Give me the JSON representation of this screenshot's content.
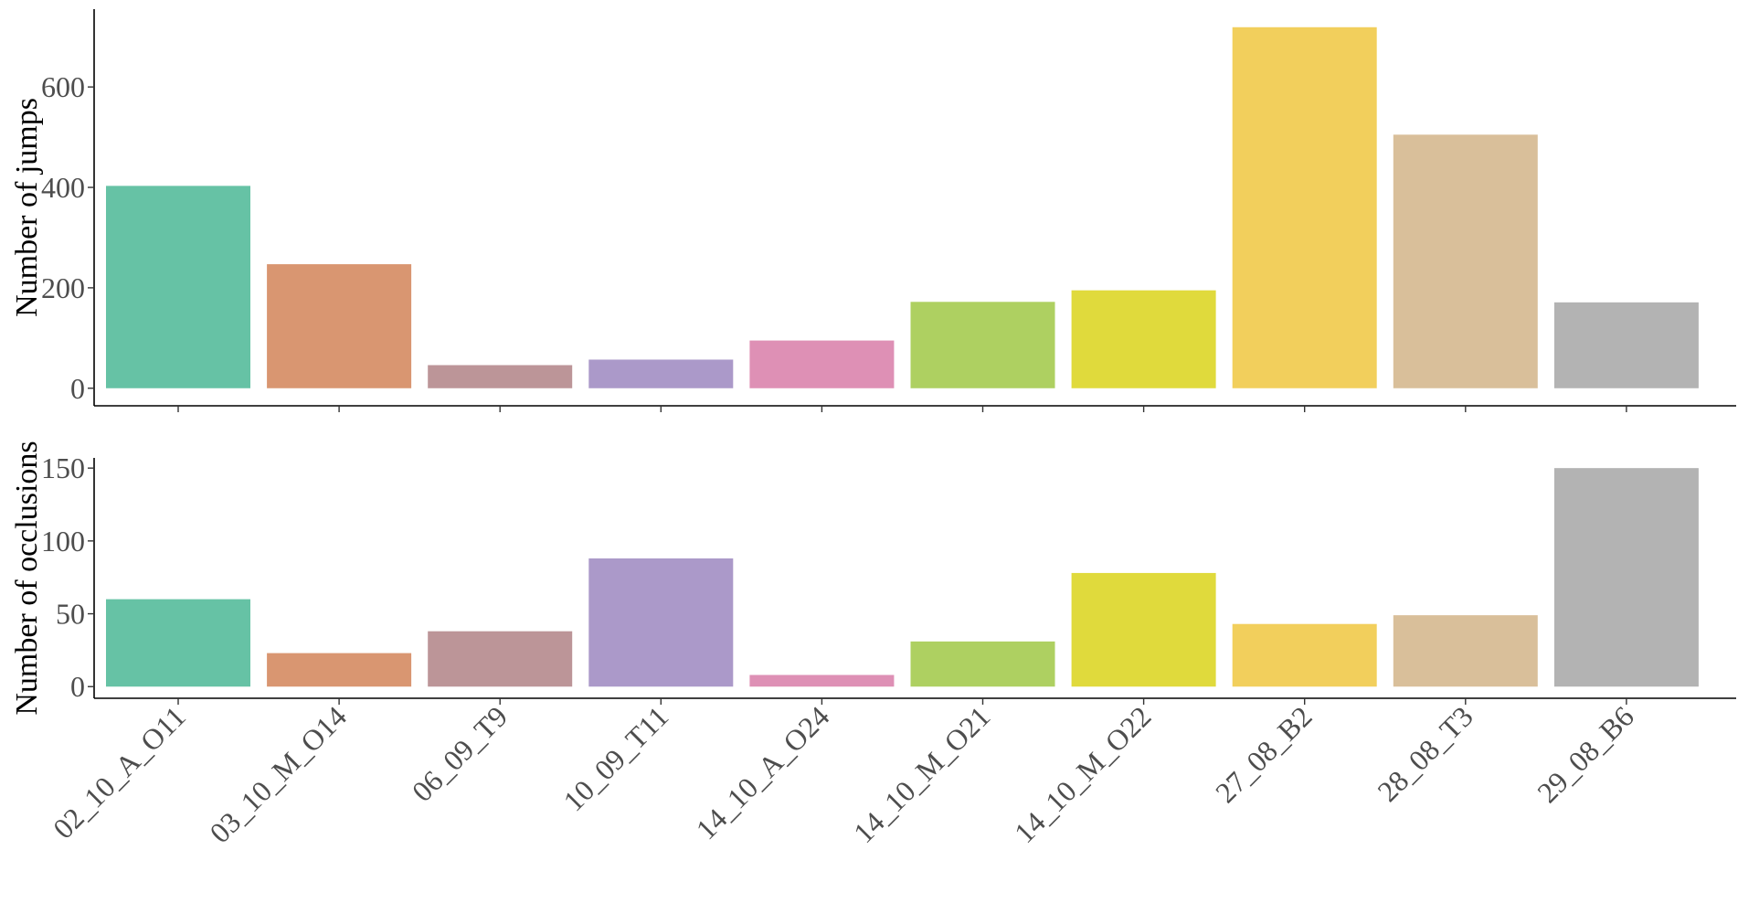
{
  "chart_data": [
    {
      "type": "bar",
      "categories": [
        "02_10_A_O11",
        "03_10_M_O14",
        "06_09_T9",
        "10_09_T11",
        "14_10_A_O24",
        "14_10_M_O21",
        "14_10_M_O22",
        "27_08_B2",
        "28_08_T3",
        "29_08_B6"
      ],
      "values": [
        403,
        247,
        46,
        57,
        95,
        172,
        195,
        719,
        505,
        171
      ],
      "title": "",
      "xlabel": "",
      "ylabel": "Number of jumps",
      "ylim": [
        -35,
        755
      ],
      "yticks": [
        0,
        200,
        400,
        600
      ],
      "x_tick_labels_shown": false,
      "grid": false,
      "legend": "none"
    },
    {
      "type": "bar",
      "categories": [
        "02_10_A_O11",
        "03_10_M_O14",
        "06_09_T9",
        "10_09_T11",
        "14_10_A_O24",
        "14_10_M_O21",
        "14_10_M_O22",
        "27_08_B2",
        "28_08_T3",
        "29_08_B6"
      ],
      "values": [
        60,
        23,
        38,
        88,
        8,
        31,
        78,
        43,
        49,
        150
      ],
      "title": "",
      "xlabel": "",
      "ylabel": "Number of occlusions",
      "ylim": [
        -8,
        157
      ],
      "yticks": [
        0,
        50,
        100,
        150
      ],
      "x_tick_labels_shown": true,
      "grid": false,
      "legend": "none"
    }
  ],
  "colors": [
    "#66c2a5",
    "#d99671",
    "#bc9598",
    "#ab99c9",
    "#de90b5",
    "#aed061",
    "#e0da3c",
    "#f2cf5c",
    "#d9bf9a",
    "#b3b3b3"
  ]
}
